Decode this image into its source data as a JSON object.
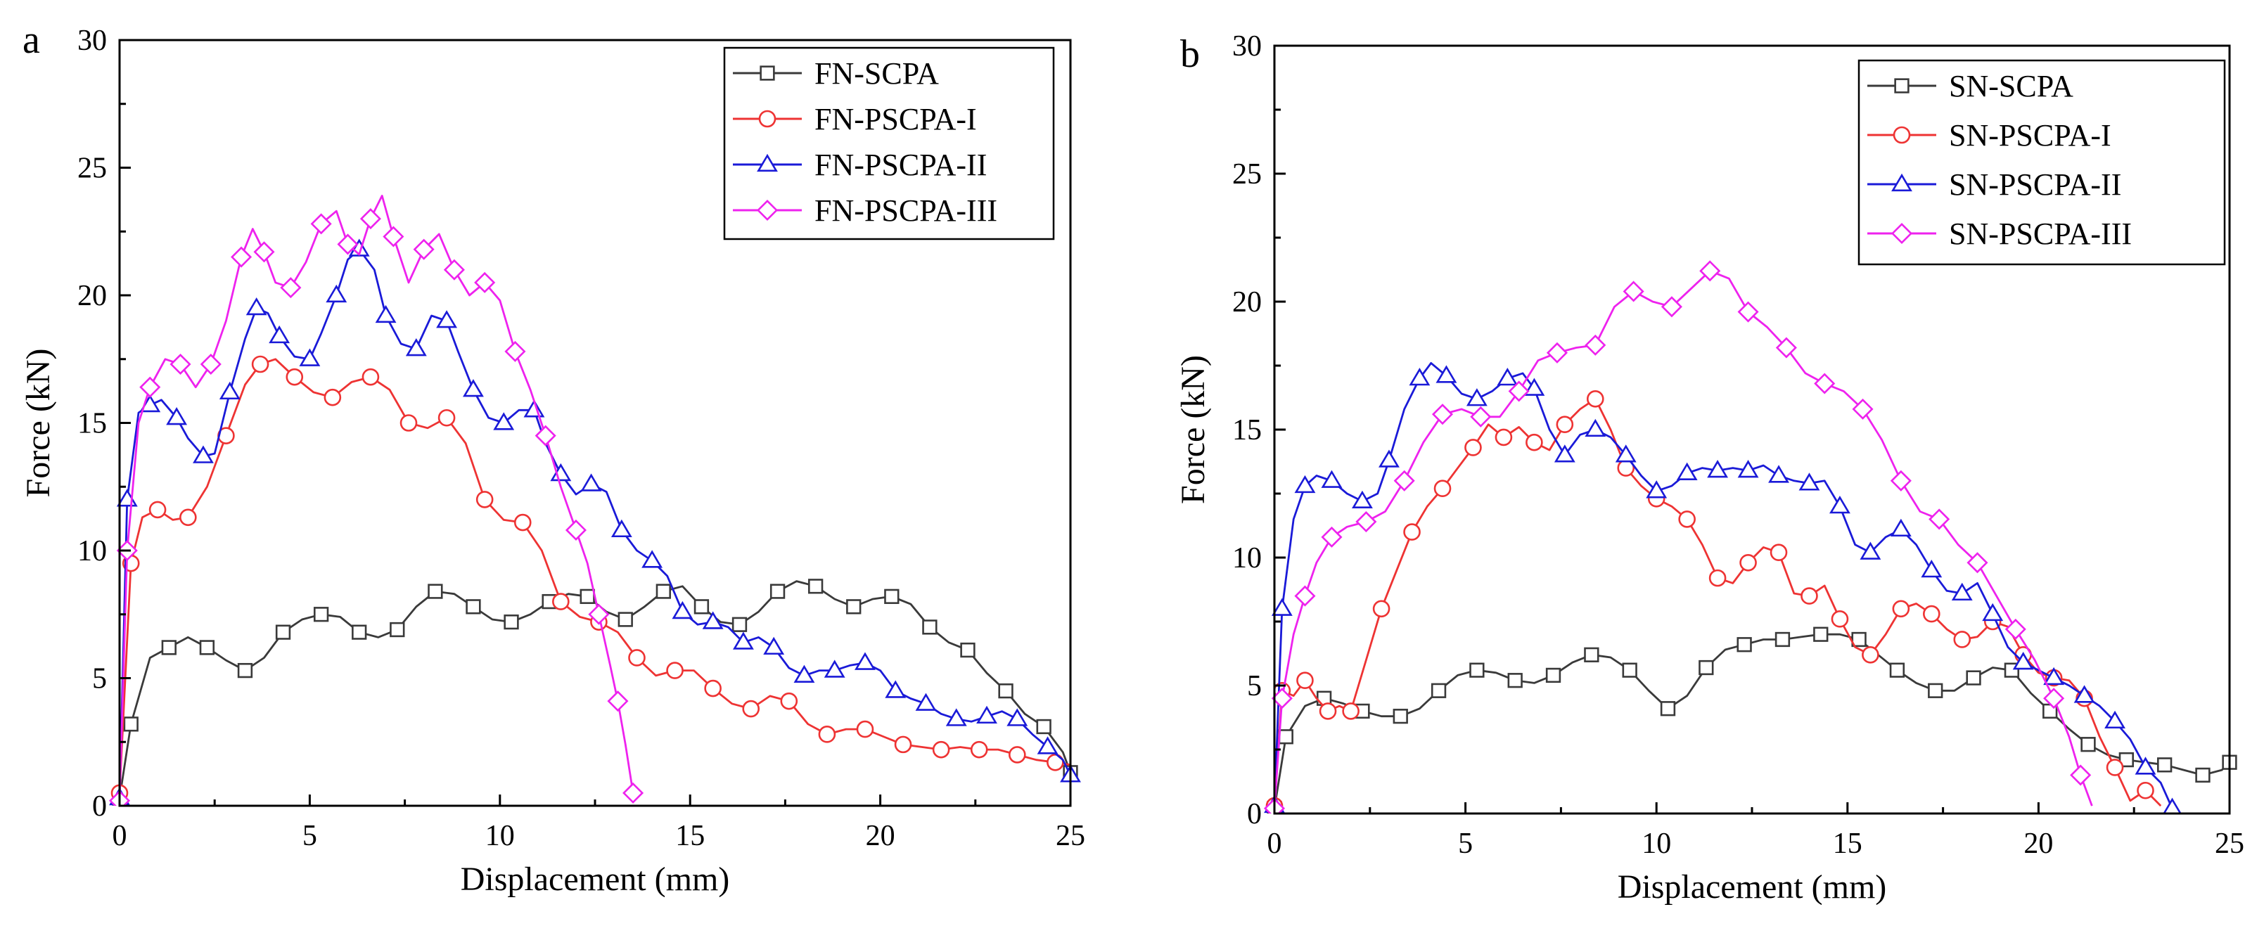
{
  "chart_data": [
    {
      "type": "line",
      "panel_label": "a",
      "xlabel": "Displacement (mm)",
      "ylabel": "Force (kN)",
      "xlim": [
        0,
        25
      ],
      "ylim": [
        0,
        30
      ],
      "xticks": [
        0,
        5,
        10,
        15,
        20,
        25
      ],
      "yticks": [
        0,
        5,
        10,
        15,
        20,
        25,
        30
      ],
      "legend_position": "top-right",
      "series": [
        {
          "name": "FN-SCPA",
          "color": "#3a3a3a",
          "marker": "square",
          "x": [
            0,
            0.3,
            0.8,
            1.3,
            1.8,
            2.3,
            2.8,
            3.3,
            3.8,
            4.3,
            4.8,
            5.3,
            5.8,
            6.3,
            6.8,
            7.3,
            7.8,
            8.3,
            8.8,
            9.3,
            9.8,
            10.3,
            10.8,
            11.3,
            11.8,
            12.3,
            12.8,
            13.3,
            13.8,
            14.3,
            14.8,
            15.3,
            15.8,
            16.3,
            16.8,
            17.3,
            17.8,
            18.3,
            18.8,
            19.3,
            19.8,
            20.3,
            20.8,
            21.3,
            21.8,
            22.3,
            22.8,
            23.3,
            23.8,
            24.3,
            24.8,
            25
          ],
          "y": [
            0.3,
            3.2,
            5.8,
            6.2,
            6.6,
            6.2,
            5.7,
            5.3,
            5.8,
            6.8,
            7.3,
            7.5,
            7.4,
            6.8,
            6.6,
            6.9,
            7.8,
            8.4,
            8.3,
            7.8,
            7.3,
            7.2,
            7.5,
            8.0,
            8.3,
            8.2,
            7.6,
            7.3,
            7.8,
            8.4,
            8.6,
            7.8,
            7.2,
            7.1,
            7.6,
            8.4,
            8.8,
            8.6,
            8.1,
            7.8,
            8.1,
            8.2,
            7.9,
            7.0,
            6.4,
            6.1,
            5.2,
            4.5,
            3.6,
            3.1,
            2.1,
            1.3
          ]
        },
        {
          "name": "FN-PSCPA-I",
          "color": "#ee3333",
          "marker": "circle",
          "x": [
            0,
            0.3,
            0.6,
            1.0,
            1.4,
            1.8,
            2.3,
            2.8,
            3.3,
            3.7,
            4.1,
            4.6,
            5.1,
            5.6,
            6.1,
            6.6,
            7.1,
            7.6,
            8.1,
            8.6,
            9.1,
            9.6,
            10.1,
            10.6,
            11.1,
            11.6,
            12.1,
            12.6,
            13.1,
            13.6,
            14.1,
            14.6,
            15.1,
            15.6,
            16.1,
            16.6,
            17.1,
            17.6,
            18.1,
            18.6,
            19.1,
            19.6,
            20.1,
            20.6,
            21.1,
            21.6,
            22.1,
            22.6,
            23.1,
            23.6,
            24.1,
            24.6,
            25
          ],
          "y": [
            0.5,
            9.5,
            11.3,
            11.6,
            11.2,
            11.3,
            12.5,
            14.5,
            16.5,
            17.3,
            17.5,
            16.8,
            16.2,
            16.0,
            16.6,
            16.8,
            16.3,
            15.0,
            14.8,
            15.2,
            14.2,
            12.0,
            11.2,
            11.1,
            10.0,
            8.0,
            7.4,
            7.2,
            6.8,
            5.8,
            5.1,
            5.3,
            5.3,
            4.6,
            4.0,
            3.8,
            4.3,
            4.1,
            3.2,
            2.8,
            3.0,
            3.0,
            2.7,
            2.4,
            2.3,
            2.2,
            2.3,
            2.2,
            2.2,
            2.0,
            1.8,
            1.7,
            1.6
          ]
        },
        {
          "name": "FN-PSCPA-II",
          "color": "#1a1ad8",
          "marker": "triangle",
          "x": [
            0,
            0.2,
            0.5,
            0.8,
            1.1,
            1.5,
            1.8,
            2.2,
            2.5,
            2.9,
            3.3,
            3.6,
            3.9,
            4.2,
            4.6,
            5.0,
            5.3,
            5.7,
            6.0,
            6.3,
            6.7,
            7.0,
            7.4,
            7.8,
            8.2,
            8.6,
            8.9,
            9.3,
            9.7,
            10.1,
            10.5,
            10.9,
            11.2,
            11.6,
            12.0,
            12.4,
            12.8,
            13.2,
            13.6,
            14.0,
            14.4,
            14.8,
            15.2,
            15.6,
            16.0,
            16.4,
            16.8,
            17.2,
            17.6,
            18.0,
            18.4,
            18.8,
            19.2,
            19.6,
            20.0,
            20.4,
            20.8,
            21.2,
            21.6,
            22.0,
            22.4,
            22.8,
            23.2,
            23.6,
            24.0,
            24.4,
            24.8,
            25
          ],
          "y": [
            0.3,
            12.0,
            15.4,
            15.7,
            15.9,
            15.2,
            14.4,
            13.7,
            13.8,
            16.2,
            18.3,
            19.5,
            19.3,
            18.4,
            17.6,
            17.5,
            18.5,
            20.0,
            21.4,
            21.8,
            21.0,
            19.2,
            18.1,
            17.9,
            19.2,
            19.0,
            17.8,
            16.3,
            15.2,
            15.0,
            15.5,
            15.5,
            14.2,
            13.0,
            12.2,
            12.6,
            12.3,
            10.8,
            10.0,
            9.6,
            9.0,
            7.6,
            7.1,
            7.2,
            7.0,
            6.4,
            6.6,
            6.2,
            5.4,
            5.1,
            5.3,
            5.3,
            5.5,
            5.6,
            5.3,
            4.5,
            4.2,
            4.0,
            3.6,
            3.4,
            3.3,
            3.5,
            3.7,
            3.4,
            2.8,
            2.3,
            1.8,
            1.2
          ]
        },
        {
          "name": "FN-PSCPA-III",
          "color": "#ee22ee",
          "marker": "diamond",
          "x": [
            0,
            0.2,
            0.5,
            0.8,
            1.2,
            1.6,
            2.0,
            2.4,
            2.8,
            3.2,
            3.5,
            3.8,
            4.1,
            4.5,
            4.9,
            5.3,
            5.7,
            6.0,
            6.3,
            6.6,
            6.9,
            7.2,
            7.6,
            8.0,
            8.4,
            8.8,
            9.2,
            9.6,
            10.0,
            10.4,
            10.8,
            11.2,
            11.6,
            12.0,
            12.3,
            12.6,
            12.9,
            13.1,
            13.3,
            13.5
          ],
          "y": [
            0.2,
            10.0,
            15.0,
            16.4,
            17.5,
            17.3,
            16.4,
            17.3,
            19.0,
            21.5,
            22.6,
            21.7,
            20.5,
            20.3,
            21.3,
            22.8,
            23.3,
            22.0,
            21.6,
            23.0,
            23.9,
            22.3,
            20.5,
            21.8,
            22.4,
            21.0,
            20.0,
            20.5,
            19.8,
            17.8,
            16.3,
            14.5,
            12.5,
            10.8,
            9.5,
            7.5,
            5.5,
            4.1,
            2.4,
            0.5
          ]
        }
      ]
    },
    {
      "type": "line",
      "panel_label": "b",
      "xlabel": "Displacement (mm)",
      "ylabel": "Force (kN)",
      "xlim": [
        0,
        25
      ],
      "ylim": [
        0,
        30
      ],
      "xticks": [
        0,
        5,
        10,
        15,
        20,
        25
      ],
      "yticks": [
        0,
        5,
        10,
        15,
        20,
        25,
        30
      ],
      "legend_position": "top-right",
      "series": [
        {
          "name": "SN-SCPA",
          "color": "#3a3a3a",
          "marker": "square",
          "x": [
            0,
            0.3,
            0.8,
            1.3,
            1.8,
            2.3,
            2.8,
            3.3,
            3.8,
            4.3,
            4.8,
            5.3,
            5.8,
            6.3,
            6.8,
            7.3,
            7.8,
            8.3,
            8.8,
            9.3,
            9.8,
            10.3,
            10.8,
            11.3,
            11.8,
            12.3,
            12.8,
            13.3,
            13.8,
            14.3,
            14.8,
            15.3,
            15.8,
            16.3,
            16.8,
            17.3,
            17.8,
            18.3,
            18.8,
            19.3,
            19.8,
            20.3,
            20.8,
            21.3,
            21.8,
            22.3,
            22.8,
            23.3,
            23.8,
            24.3,
            24.8,
            25
          ],
          "y": [
            0.2,
            3.0,
            4.2,
            4.5,
            4.3,
            4.0,
            3.8,
            3.8,
            4.1,
            4.8,
            5.4,
            5.6,
            5.5,
            5.2,
            5.1,
            5.4,
            5.9,
            6.2,
            6.1,
            5.6,
            4.8,
            4.1,
            4.6,
            5.7,
            6.4,
            6.6,
            6.8,
            6.8,
            6.9,
            7.0,
            7.0,
            6.8,
            6.2,
            5.6,
            5.1,
            4.8,
            4.8,
            5.3,
            5.7,
            5.6,
            4.7,
            4.0,
            3.3,
            2.7,
            2.3,
            2.1,
            2.0,
            1.9,
            1.7,
            1.5,
            1.7,
            2.0
          ]
        },
        {
          "name": "SN-PSCPA-I",
          "color": "#ee3333",
          "marker": "circle",
          "x": [
            0,
            0.2,
            0.5,
            0.8,
            1.1,
            1.4,
            1.7,
            2.0,
            2.4,
            2.8,
            3.2,
            3.6,
            4.0,
            4.4,
            4.8,
            5.2,
            5.6,
            6.0,
            6.4,
            6.8,
            7.2,
            7.6,
            8.0,
            8.4,
            8.8,
            9.2,
            9.6,
            10.0,
            10.4,
            10.8,
            11.2,
            11.6,
            12.0,
            12.4,
            12.8,
            13.2,
            13.6,
            14.0,
            14.4,
            14.8,
            15.2,
            15.6,
            16.0,
            16.4,
            16.8,
            17.2,
            17.6,
            18.0,
            18.4,
            18.8,
            19.2,
            19.6,
            20.0,
            20.4,
            20.8,
            21.2,
            21.6,
            22.0,
            22.4,
            22.8,
            23.2
          ],
          "y": [
            0.3,
            4.8,
            4.6,
            5.2,
            4.5,
            4.0,
            4.2,
            4.0,
            6.0,
            8.0,
            9.5,
            11.0,
            12.0,
            12.7,
            13.5,
            14.3,
            15.2,
            14.7,
            15.1,
            14.5,
            14.2,
            15.2,
            15.8,
            16.2,
            15.0,
            13.5,
            12.8,
            12.3,
            12.0,
            11.5,
            10.5,
            9.2,
            9.0,
            9.8,
            10.4,
            10.2,
            8.6,
            8.5,
            8.9,
            7.6,
            6.5,
            6.2,
            7.0,
            8.0,
            8.2,
            7.8,
            7.2,
            6.8,
            6.9,
            7.5,
            7.3,
            6.2,
            5.5,
            5.3,
            5.2,
            4.5,
            3.0,
            1.8,
            0.5,
            0.9,
            0.3
          ]
        },
        {
          "name": "SN-PSCPA-II",
          "color": "#1a1ad8",
          "marker": "triangle",
          "x": [
            0,
            0.2,
            0.5,
            0.8,
            1.1,
            1.5,
            1.9,
            2.3,
            2.7,
            3.0,
            3.4,
            3.8,
            4.1,
            4.5,
            4.9,
            5.3,
            5.7,
            6.1,
            6.5,
            6.8,
            7.2,
            7.6,
            8.0,
            8.4,
            8.8,
            9.2,
            9.6,
            10.0,
            10.4,
            10.8,
            11.2,
            11.6,
            12.0,
            12.4,
            12.8,
            13.2,
            13.6,
            14.0,
            14.4,
            14.8,
            15.2,
            15.6,
            16.0,
            16.4,
            16.8,
            17.2,
            17.6,
            18.0,
            18.4,
            18.8,
            19.2,
            19.6,
            20.0,
            20.4,
            20.8,
            21.2,
            21.6,
            22.0,
            22.4,
            22.8,
            23.2,
            23.5
          ],
          "y": [
            0.3,
            8.0,
            11.5,
            12.8,
            13.2,
            13.0,
            12.5,
            12.2,
            12.5,
            13.8,
            15.8,
            17.0,
            17.6,
            17.1,
            16.4,
            16.2,
            16.5,
            17.0,
            17.2,
            16.6,
            15.0,
            14.0,
            14.8,
            15.0,
            14.7,
            14.0,
            13.2,
            12.6,
            12.8,
            13.3,
            13.5,
            13.4,
            13.5,
            13.4,
            13.6,
            13.2,
            13.0,
            12.9,
            13.0,
            12.0,
            10.5,
            10.2,
            10.8,
            11.1,
            10.5,
            9.5,
            8.7,
            8.6,
            9.0,
            7.8,
            6.5,
            5.9,
            5.6,
            5.3,
            5.0,
            4.6,
            4.2,
            3.6,
            2.9,
            1.8,
            1.2,
            0.2
          ]
        },
        {
          "name": "SN-PSCPA-III",
          "color": "#ee22ee",
          "marker": "diamond",
          "x": [
            0,
            0.2,
            0.5,
            0.8,
            1.1,
            1.5,
            1.9,
            2.4,
            2.9,
            3.4,
            3.9,
            4.4,
            4.9,
            5.4,
            5.9,
            6.4,
            6.9,
            7.4,
            7.9,
            8.4,
            8.9,
            9.4,
            9.9,
            10.4,
            10.9,
            11.4,
            11.9,
            12.4,
            12.9,
            13.4,
            13.9,
            14.4,
            14.9,
            15.4,
            15.9,
            16.4,
            16.9,
            17.4,
            17.9,
            18.4,
            18.9,
            19.4,
            19.9,
            20.4,
            20.8,
            21.1,
            21.4
          ],
          "y": [
            0.2,
            4.5,
            7.0,
            8.5,
            9.8,
            10.8,
            11.2,
            11.4,
            11.8,
            13.0,
            14.5,
            15.6,
            15.8,
            15.5,
            15.5,
            16.5,
            17.7,
            18.0,
            18.2,
            18.3,
            19.8,
            20.4,
            20.0,
            19.8,
            20.5,
            21.2,
            20.9,
            19.6,
            19.0,
            18.2,
            17.2,
            16.8,
            16.5,
            15.8,
            14.6,
            13.0,
            11.8,
            11.5,
            10.5,
            9.8,
            8.5,
            7.2,
            6.0,
            4.5,
            3.0,
            1.5,
            0.3
          ]
        }
      ]
    }
  ]
}
